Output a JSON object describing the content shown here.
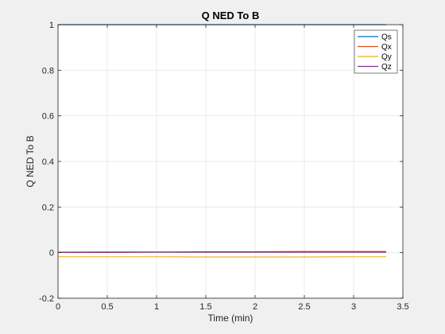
{
  "chart_data": {
    "type": "line",
    "title": "Q NED To B",
    "xlabel": "Time (min)",
    "ylabel": "Q NED To B",
    "xlim": [
      0,
      3.5
    ],
    "ylim": [
      -0.2,
      1
    ],
    "xticks": [
      0,
      0.5,
      1,
      1.5,
      2,
      2.5,
      3,
      3.5
    ],
    "xtick_labels": [
      "0",
      "0.5",
      "1",
      "1.5",
      "2",
      "2.5",
      "3",
      "3.5"
    ],
    "yticks": [
      -0.2,
      0,
      0.2,
      0.4,
      0.6,
      0.8,
      1
    ],
    "ytick_labels": [
      "-0.2",
      "0",
      "0.2",
      "0.4",
      "0.6",
      "0.8",
      "1"
    ],
    "grid": true,
    "legend_position": "top-right",
    "series": [
      {
        "name": "Qs",
        "color": "#0072bd",
        "x": [
          0,
          0.5,
          1,
          1.5,
          2,
          2.5,
          3,
          3.33
        ],
        "y": [
          1,
          1,
          1,
          1,
          1,
          1,
          1,
          1
        ]
      },
      {
        "name": "Qx",
        "color": "#d95319",
        "x": [
          0,
          0.5,
          1,
          1.5,
          2,
          2.5,
          3,
          3.33
        ],
        "y": [
          0.002,
          0.003,
          0.003,
          0.004,
          0.004,
          0.005,
          0.005,
          0.005
        ]
      },
      {
        "name": "Qy",
        "color": "#edb120",
        "x": [
          0,
          0.5,
          1,
          1.5,
          2,
          2.5,
          3,
          3.33
        ],
        "y": [
          -0.018,
          -0.018,
          -0.018,
          -0.019,
          -0.019,
          -0.019,
          -0.018,
          -0.018
        ]
      },
      {
        "name": "Qz",
        "color": "#7e2f8e",
        "x": [
          0,
          0.5,
          1,
          1.5,
          2,
          2.5,
          3,
          3.33
        ],
        "y": [
          0.001,
          0.001,
          0.002,
          0.002,
          0.002,
          0.002,
          0.002,
          0.002
        ]
      }
    ]
  }
}
